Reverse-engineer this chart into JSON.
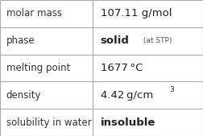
{
  "rows": [
    {
      "label": "molar mass",
      "value": "107.11 g/mol",
      "value_style": "normal",
      "suffix": null,
      "suffix_style": null
    },
    {
      "label": "phase",
      "value": "solid",
      "value_style": "bold",
      "suffix": " (at STP)",
      "suffix_style": "small"
    },
    {
      "label": "melting point",
      "value": "1677 °C",
      "value_style": "normal",
      "suffix": null,
      "suffix_style": null
    },
    {
      "label": "density",
      "value": "4.42 g/cm",
      "value_style": "normal",
      "suffix": "3",
      "suffix_style": "super"
    },
    {
      "label": "solubility in water",
      "value": "insoluble",
      "value_style": "bold",
      "suffix": null,
      "suffix_style": null
    }
  ],
  "bg_color": "#ffffff",
  "border_color": "#aaaaaa",
  "label_color": "#333333",
  "value_color": "#222222",
  "suffix_color": "#555555",
  "label_fontsize": 8.5,
  "value_fontsize": 9.5,
  "small_fontsize": 6.5,
  "super_fontsize": 6.5,
  "col_split": 0.455,
  "fig_width": 2.52,
  "fig_height": 1.69,
  "dpi": 100
}
